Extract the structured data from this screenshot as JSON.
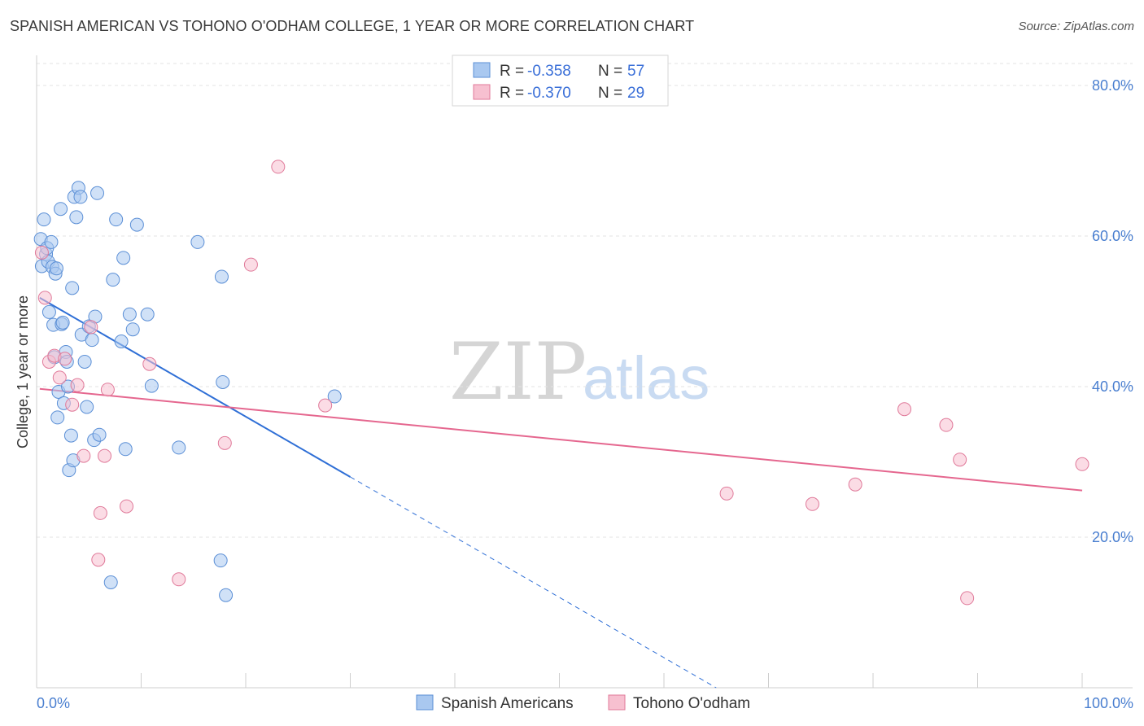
{
  "title": "SPANISH AMERICAN VS TOHONO O'ODHAM COLLEGE, 1 YEAR OR MORE CORRELATION CHART",
  "source": "Source: ZipAtlas.com",
  "watermark": {
    "zip": "ZIP",
    "atlas": "atlas"
  },
  "legend_box": {
    "rows": [
      {
        "r_label": "R =",
        "r_value": "-0.358",
        "n_label": "N =",
        "n_value": "57",
        "color": "#a9c8f0",
        "stroke": "#5b8fd6"
      },
      {
        "r_label": "R =",
        "r_value": "-0.370",
        "n_label": "N =",
        "n_value": "29",
        "color": "#f7c0d0",
        "stroke": "#e07a9a"
      }
    ]
  },
  "bottom_legend": [
    {
      "label": "Spanish Americans",
      "color": "#a9c8f0",
      "stroke": "#5b8fd6"
    },
    {
      "label": "Tohono O'odham",
      "color": "#f7c0d0",
      "stroke": "#e07a9a"
    }
  ],
  "chart_data": {
    "type": "scatter",
    "title": "SPANISH AMERICAN VS TOHONO O'ODHAM COLLEGE, 1 YEAR OR MORE CORRELATION CHART",
    "xlabel": "",
    "ylabel": "College, 1 year or more",
    "xlim": [
      0,
      100
    ],
    "ylim": [
      0,
      84
    ],
    "x_tick_labels": [
      {
        "value": 0,
        "label": "0.0%"
      },
      {
        "value": 100,
        "label": "100.0%"
      }
    ],
    "y_tick_labels": [
      {
        "value": 20,
        "label": "20.0%"
      },
      {
        "value": 40,
        "label": "40.0%"
      },
      {
        "value": 60,
        "label": "60.0%"
      },
      {
        "value": 80,
        "label": "80.0%"
      }
    ],
    "x_minor_ticks": [
      0,
      10,
      20,
      30,
      40,
      50,
      60,
      70,
      80,
      90,
      100
    ],
    "grid": true,
    "legend_placement": "bottom",
    "series": [
      {
        "name": "Spanish Americans",
        "color": "#a9c8f0",
        "stroke": "#5b8fd6",
        "points": [
          [
            0.4,
            59.6
          ],
          [
            0.5,
            56.0
          ],
          [
            0.7,
            62.2
          ],
          [
            0.9,
            57.6
          ],
          [
            1.0,
            58.4
          ],
          [
            1.1,
            56.6
          ],
          [
            1.2,
            49.9
          ],
          [
            1.4,
            59.2
          ],
          [
            1.5,
            55.9
          ],
          [
            1.6,
            48.2
          ],
          [
            1.7,
            43.9
          ],
          [
            1.8,
            55.0
          ],
          [
            1.9,
            55.7
          ],
          [
            2.0,
            35.9
          ],
          [
            2.1,
            39.3
          ],
          [
            2.3,
            63.6
          ],
          [
            2.4,
            48.3
          ],
          [
            2.5,
            48.5
          ],
          [
            2.6,
            37.8
          ],
          [
            2.8,
            44.6
          ],
          [
            2.9,
            43.3
          ],
          [
            3.0,
            40.0
          ],
          [
            3.1,
            28.9
          ],
          [
            3.3,
            33.5
          ],
          [
            3.4,
            53.1
          ],
          [
            3.5,
            30.2
          ],
          [
            3.6,
            65.2
          ],
          [
            3.8,
            62.5
          ],
          [
            4.0,
            66.4
          ],
          [
            4.2,
            65.2
          ],
          [
            4.3,
            46.9
          ],
          [
            4.6,
            43.3
          ],
          [
            4.8,
            37.3
          ],
          [
            5.0,
            48.0
          ],
          [
            5.3,
            46.2
          ],
          [
            5.5,
            32.9
          ],
          [
            5.6,
            49.3
          ],
          [
            5.8,
            65.7
          ],
          [
            6.0,
            33.6
          ],
          [
            7.1,
            14.0
          ],
          [
            7.3,
            54.2
          ],
          [
            7.6,
            62.2
          ],
          [
            8.1,
            46.0
          ],
          [
            8.3,
            57.1
          ],
          [
            8.5,
            31.7
          ],
          [
            8.9,
            49.6
          ],
          [
            9.2,
            47.6
          ],
          [
            9.6,
            61.5
          ],
          [
            10.6,
            49.6
          ],
          [
            11.0,
            40.1
          ],
          [
            13.6,
            31.9
          ],
          [
            15.4,
            59.2
          ],
          [
            17.6,
            16.9
          ],
          [
            17.7,
            54.6
          ],
          [
            17.8,
            40.6
          ],
          [
            18.1,
            12.3
          ],
          [
            28.5,
            38.7
          ]
        ],
        "trend": {
          "x1": 0.3,
          "y1": 51.8,
          "x2": 30.0,
          "y2": 28.0,
          "dash_to_x": 65.0,
          "dash_to_y": 0.0
        }
      },
      {
        "name": "Tohono O'odham",
        "color": "#f7c0d0",
        "stroke": "#e07a9a",
        "points": [
          [
            0.5,
            57.8
          ],
          [
            0.8,
            51.8
          ],
          [
            1.2,
            43.3
          ],
          [
            1.7,
            44.1
          ],
          [
            2.2,
            41.2
          ],
          [
            2.7,
            43.7
          ],
          [
            3.4,
            37.6
          ],
          [
            3.9,
            40.2
          ],
          [
            4.5,
            30.8
          ],
          [
            5.2,
            47.9
          ],
          [
            5.9,
            17.0
          ],
          [
            6.1,
            23.2
          ],
          [
            6.5,
            30.8
          ],
          [
            6.8,
            39.6
          ],
          [
            8.6,
            24.1
          ],
          [
            10.8,
            43.0
          ],
          [
            13.6,
            14.4
          ],
          [
            18.0,
            32.5
          ],
          [
            20.5,
            56.2
          ],
          [
            23.1,
            69.2
          ],
          [
            27.6,
            37.5
          ],
          [
            66.0,
            25.8
          ],
          [
            74.2,
            24.4
          ],
          [
            78.3,
            27.0
          ],
          [
            83.0,
            37.0
          ],
          [
            87.0,
            34.9
          ],
          [
            88.3,
            30.3
          ],
          [
            89.0,
            11.9
          ],
          [
            100.0,
            29.7
          ]
        ],
        "trend": {
          "x1": 0.3,
          "y1": 39.7,
          "x2": 100.0,
          "y2": 26.2
        }
      }
    ]
  }
}
